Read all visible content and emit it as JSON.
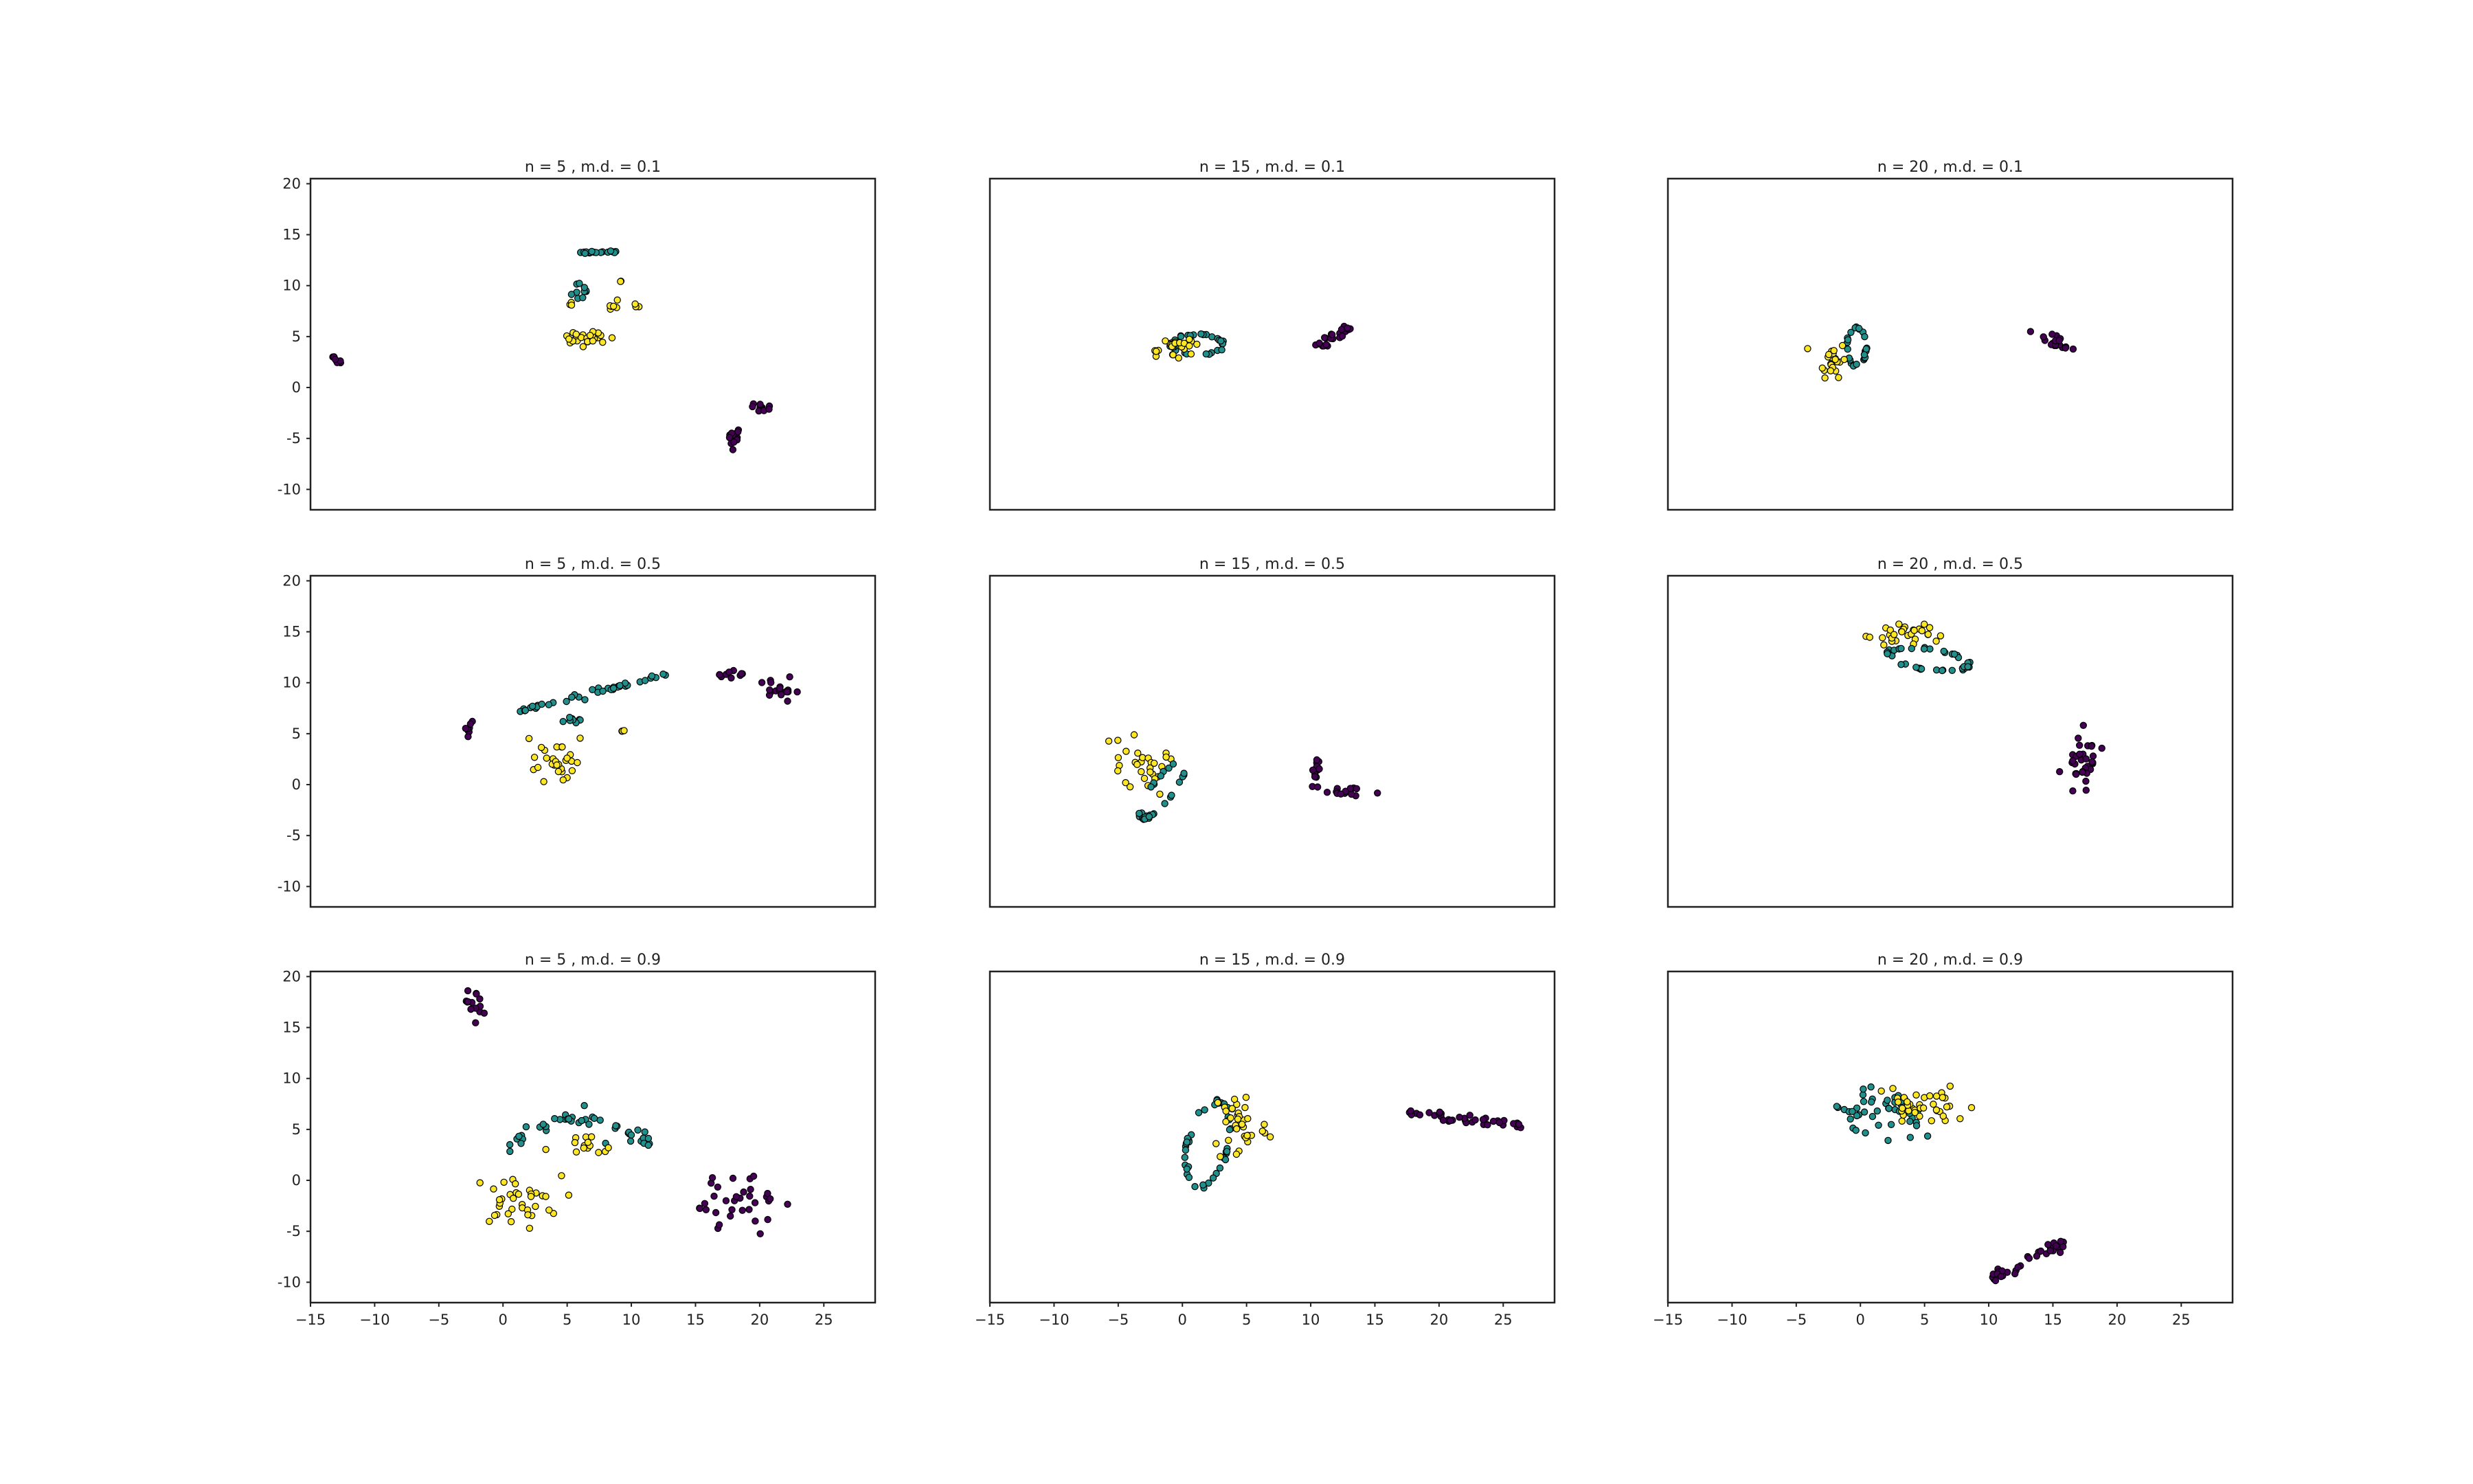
{
  "chart_data": [
    {
      "type": "scatter",
      "title": "n = 5 , m.d. = 0.1",
      "xlim": [
        -15,
        29
      ],
      "ylim": [
        -12,
        20.5
      ],
      "yticks": [
        "20",
        "15",
        "10",
        "5",
        "0",
        "-5",
        "-10"
      ],
      "xticks": [],
      "clusters": [
        {
          "color": "purple",
          "cx": -13,
          "cy": 2.8,
          "rx": 0.5,
          "ry": 0.4,
          "n": 8,
          "shape": "line",
          "angle": -40
        },
        {
          "color": "purple",
          "cx": 18,
          "cy": -4.8,
          "rx": 0.5,
          "ry": 0.9,
          "n": 14,
          "shape": "blob"
        },
        {
          "color": "purple",
          "cx": 20.2,
          "cy": -2,
          "rx": 0.8,
          "ry": 0.7,
          "n": 10,
          "shape": "line",
          "angle": -40
        },
        {
          "color": "teal",
          "cx": 7,
          "cy": 13.3,
          "rx": 1.8,
          "ry": 0.2,
          "n": 16,
          "shape": "line",
          "angle": 0
        },
        {
          "color": "teal",
          "cx": 6,
          "cy": 9.5,
          "rx": 0.6,
          "ry": 0.8,
          "n": 10,
          "shape": "blob"
        },
        {
          "color": "yellow",
          "cx": 6.3,
          "cy": 4.8,
          "rx": 1.6,
          "ry": 0.7,
          "n": 26,
          "shape": "blob"
        },
        {
          "color": "yellow",
          "cx": 8.5,
          "cy": 8,
          "rx": 0.5,
          "ry": 0.5,
          "n": 6,
          "shape": "blob"
        },
        {
          "color": "yellow",
          "cx": 10.5,
          "cy": 8,
          "rx": 0.3,
          "ry": 0.3,
          "n": 3,
          "shape": "blob"
        },
        {
          "color": "yellow",
          "cx": 9.2,
          "cy": 10.3,
          "rx": 0.2,
          "ry": 0.2,
          "n": 2,
          "shape": "blob"
        },
        {
          "color": "yellow",
          "cx": 5.2,
          "cy": 8.1,
          "rx": 0.3,
          "ry": 0.3,
          "n": 3,
          "shape": "blob"
        }
      ]
    },
    {
      "type": "scatter",
      "title": "n = 15 , m.d. = 0.1",
      "xlim": [
        -15,
        29
      ],
      "ylim": [
        -12,
        20.5
      ],
      "yticks": [],
      "xticks": [],
      "clusters": [
        {
          "color": "teal",
          "cx": 1.2,
          "cy": 4.2,
          "rx": 2.2,
          "ry": 1.1,
          "n": 30,
          "shape": "ring"
        },
        {
          "color": "yellow",
          "cx": -0.5,
          "cy": 3.9,
          "rx": 2,
          "ry": 0.8,
          "n": 24,
          "shape": "blob"
        },
        {
          "color": "purple",
          "cx": 11.8,
          "cy": 5,
          "rx": 1.7,
          "ry": 0.8,
          "n": 26,
          "shape": "line",
          "angle": 35
        }
      ]
    },
    {
      "type": "scatter",
      "title": "n = 20 , m.d. = 0.1",
      "xlim": [
        -15,
        29
      ],
      "ylim": [
        -12,
        20.5
      ],
      "yticks": [],
      "xticks": [],
      "clusters": [
        {
          "color": "teal",
          "cx": -0.3,
          "cy": 4,
          "rx": 0.8,
          "ry": 2,
          "n": 26,
          "shape": "ring"
        },
        {
          "color": "yellow",
          "cx": -2.2,
          "cy": 2.8,
          "rx": 1,
          "ry": 1.6,
          "n": 24,
          "shape": "blob"
        },
        {
          "color": "purple",
          "cx": 15.5,
          "cy": 4.6,
          "rx": 0.6,
          "ry": 1.8,
          "n": 18,
          "shape": "line",
          "angle": 75
        }
      ]
    },
    {
      "type": "scatter",
      "title": "n = 5 , m.d. = 0.5",
      "xlim": [
        -15,
        29
      ],
      "ylim": [
        -12,
        20.5
      ],
      "yticks": [
        "20",
        "15",
        "10",
        "5",
        "0",
        "-5",
        "-10"
      ],
      "xticks": [],
      "clusters": [
        {
          "color": "purple",
          "cx": -2.7,
          "cy": 5.6,
          "rx": 0.25,
          "ry": 0.9,
          "n": 8,
          "shape": "blob"
        },
        {
          "color": "purple",
          "cx": 17.8,
          "cy": 10.8,
          "rx": 1.8,
          "ry": 0.4,
          "n": 10,
          "shape": "blob"
        },
        {
          "color": "purple",
          "cx": 21.5,
          "cy": 9.2,
          "rx": 1.5,
          "ry": 0.9,
          "n": 18,
          "shape": "blob"
        },
        {
          "color": "teal",
          "cx": 7.5,
          "cy": 9.2,
          "rx": 6.5,
          "ry": 0.4,
          "n": 40,
          "shape": "line",
          "angle": 18
        },
        {
          "color": "teal",
          "cx": 5.5,
          "cy": 6.3,
          "rx": 1.2,
          "ry": 0.4,
          "n": 8,
          "shape": "blob"
        },
        {
          "color": "yellow",
          "cx": 4.2,
          "cy": 2.5,
          "rx": 1.5,
          "ry": 2.3,
          "n": 30,
          "shape": "blob"
        },
        {
          "color": "yellow",
          "cx": 9.3,
          "cy": 5.2,
          "rx": 0.2,
          "ry": 0.4,
          "n": 3,
          "shape": "blob"
        }
      ]
    },
    {
      "type": "scatter",
      "title": "n = 15 , m.d. = 0.5",
      "xlim": [
        -15,
        29
      ],
      "ylim": [
        -12,
        20.5
      ],
      "yticks": [],
      "xticks": [],
      "clusters": [
        {
          "color": "yellow",
          "cx": -3.2,
          "cy": 1.8,
          "rx": 1.8,
          "ry": 2.5,
          "n": 30,
          "shape": "blob"
        },
        {
          "color": "teal",
          "cx": -1.6,
          "cy": -0.6,
          "rx": 1,
          "ry": 3.3,
          "n": 32,
          "shape": "ring",
          "angle": -30
        },
        {
          "color": "purple",
          "cx": 10.5,
          "cy": 1.5,
          "rx": 0.6,
          "ry": 1.5,
          "n": 14,
          "shape": "blob"
        },
        {
          "color": "purple",
          "cx": 12.5,
          "cy": -0.7,
          "rx": 1.5,
          "ry": 0.6,
          "n": 14,
          "shape": "blob"
        }
      ]
    },
    {
      "type": "scatter",
      "title": "n = 20 , m.d. = 0.5",
      "xlim": [
        -15,
        29
      ],
      "ylim": [
        -12,
        20.5
      ],
      "yticks": [],
      "xticks": [],
      "clusters": [
        {
          "color": "yellow",
          "cx": 3,
          "cy": 14.7,
          "rx": 2.8,
          "ry": 1.2,
          "n": 30,
          "shape": "blob"
        },
        {
          "color": "teal",
          "cx": 5.3,
          "cy": 12.3,
          "rx": 3.4,
          "ry": 1.1,
          "n": 36,
          "shape": "ring",
          "angle": -10
        },
        {
          "color": "purple",
          "cx": 17.2,
          "cy": 2.5,
          "rx": 1.2,
          "ry": 2.5,
          "n": 34,
          "shape": "blob"
        }
      ]
    },
    {
      "type": "scatter",
      "title": "n = 5 , m.d. = 0.9",
      "xlim": [
        -15,
        29
      ],
      "ylim": [
        -12,
        20.5
      ],
      "yticks": [
        "20",
        "15",
        "10",
        "5",
        "0",
        "-5",
        "-10"
      ],
      "xticks": [
        "-15",
        "-10",
        "-5",
        "0",
        "5",
        "10",
        "15",
        "20",
        "25"
      ],
      "clusters": [
        {
          "color": "purple",
          "cx": -2.2,
          "cy": 17.5,
          "rx": 0.7,
          "ry": 1.3,
          "n": 14,
          "shape": "blob"
        },
        {
          "color": "purple",
          "cx": 18.5,
          "cy": -1.8,
          "rx": 2.8,
          "ry": 2.8,
          "n": 34,
          "shape": "blob"
        },
        {
          "color": "teal",
          "cx": 6,
          "cy": 4.8,
          "rx": 5.5,
          "ry": 2.3,
          "n": 46,
          "shape": "arc"
        },
        {
          "color": "yellow",
          "cx": 1,
          "cy": -2,
          "rx": 3.2,
          "ry": 2.2,
          "n": 36,
          "shape": "blob"
        },
        {
          "color": "yellow",
          "cx": 6.2,
          "cy": 3,
          "rx": 2.5,
          "ry": 1.4,
          "n": 14,
          "shape": "blob"
        }
      ]
    },
    {
      "type": "scatter",
      "title": "n = 15 , m.d. = 0.9",
      "xlim": [
        -15,
        29
      ],
      "ylim": [
        -12,
        20.5
      ],
      "yticks": [],
      "xticks": [
        "-15",
        "-10",
        "-5",
        "0",
        "5",
        "10",
        "15",
        "20",
        "25"
      ],
      "clusters": [
        {
          "color": "teal",
          "cx": 2,
          "cy": 3.5,
          "rx": 1.7,
          "ry": 4.5,
          "n": 40,
          "shape": "ring",
          "angle": -10
        },
        {
          "color": "yellow",
          "cx": 4.5,
          "cy": 5.5,
          "rx": 2,
          "ry": 3.6,
          "n": 36,
          "shape": "blob"
        },
        {
          "color": "purple",
          "cx": 22,
          "cy": 6,
          "rx": 4.5,
          "ry": 0.7,
          "n": 38,
          "shape": "line",
          "angle": -8
        }
      ]
    },
    {
      "type": "scatter",
      "title": "n = 20 , m.d. = 0.9",
      "xlim": [
        -15,
        29
      ],
      "ylim": [
        -12,
        20.5
      ],
      "yticks": [],
      "xticks": [
        "-15",
        "-10",
        "-5",
        "0",
        "5",
        "10",
        "15",
        "20",
        "25"
      ],
      "clusters": [
        {
          "color": "teal",
          "cx": 2.2,
          "cy": 6.8,
          "rx": 3.8,
          "ry": 1.8,
          "n": 46,
          "shape": "blob"
        },
        {
          "color": "yellow",
          "cx": 4.8,
          "cy": 7,
          "rx": 3,
          "ry": 2,
          "n": 38,
          "shape": "blob"
        },
        {
          "color": "purple",
          "cx": 13,
          "cy": -8,
          "rx": 3.5,
          "ry": 0.9,
          "n": 36,
          "shape": "line",
          "angle": 32
        }
      ]
    }
  ],
  "colors": {
    "purple": "#440154",
    "teal": "#21908d",
    "yellow": "#fde725",
    "edge": "#000000"
  }
}
